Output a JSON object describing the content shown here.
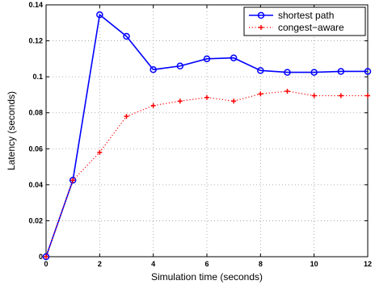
{
  "chart_data": {
    "type": "line",
    "xlabel": "Simulation time (seconds)",
    "ylabel": "Latency (seconds)",
    "xlim": [
      0,
      12
    ],
    "ylim": [
      0,
      0.14
    ],
    "xticks": [
      0,
      2,
      4,
      6,
      8,
      10,
      12
    ],
    "yticks": [
      0,
      0.02,
      0.04,
      0.06,
      0.08,
      0.1,
      0.12,
      0.14
    ],
    "xtick_labels": [
      "0",
      "2",
      "4",
      "6",
      "8",
      "10",
      "12"
    ],
    "ytick_labels": [
      "0",
      "0.02",
      "0.04",
      "0.06",
      "0.08",
      "0.1",
      "0.12",
      "0.14"
    ],
    "grid": true,
    "legend_position": "top-right",
    "series": [
      {
        "name": "shortest path",
        "color": "#0000ff",
        "line_style": "solid",
        "marker": "circle",
        "x": [
          0,
          1,
          2,
          3,
          4,
          5,
          6,
          7,
          8,
          9,
          10,
          11,
          12
        ],
        "y": [
          0,
          0.0425,
          0.1345,
          0.1225,
          0.104,
          0.106,
          0.11,
          0.1105,
          0.1035,
          0.1025,
          0.1025,
          0.103,
          0.103
        ]
      },
      {
        "name": "congest−aware",
        "color": "#ff0000",
        "line_style": "dotted",
        "marker": "plus",
        "x": [
          0,
          1,
          2,
          3,
          4,
          5,
          6,
          7,
          8,
          9,
          10,
          11,
          12
        ],
        "y": [
          0,
          0.0425,
          0.058,
          0.078,
          0.084,
          0.0865,
          0.0885,
          0.0865,
          0.0905,
          0.092,
          0.0895,
          0.0895,
          0.0895
        ]
      }
    ]
  }
}
